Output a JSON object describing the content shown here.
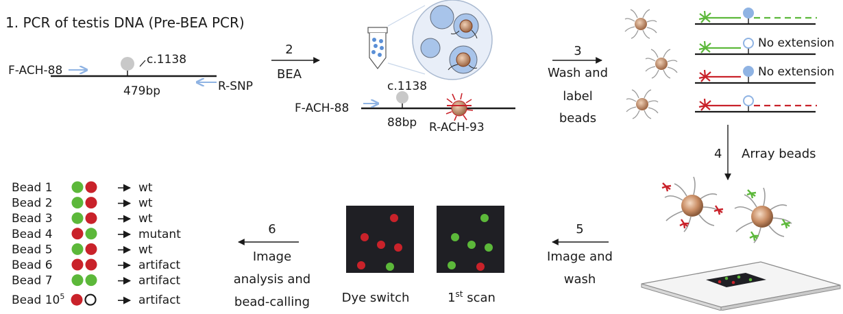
{
  "step1": {
    "title": "1. PCR of testis DNA (Pre-BEA PCR)",
    "forward_primer": "F-ACH-88",
    "snp_label": "c.1138",
    "reverse_primer": "R-SNP",
    "size": "479bp"
  },
  "step2": {
    "number": "2",
    "label": "BEA",
    "snp_label": "c.1138",
    "forward_primer": "F-ACH-88",
    "size": "88bp",
    "reverse_primer": "R-ACH-93"
  },
  "step3": {
    "number": "3",
    "line1": "Wash and",
    "line2": "label",
    "line3": "beads",
    "no_extension_1": "No extension",
    "no_extension_2": "No extension"
  },
  "step4": {
    "number": "4",
    "label": "Array beads"
  },
  "step5": {
    "number": "5",
    "line1": "Image and",
    "line2": "wash"
  },
  "scans": {
    "dye_switch": "Dye switch",
    "first_scan_main": "1",
    "first_scan_sup": "st",
    "first_scan_rest": " scan"
  },
  "step6": {
    "number": "6",
    "line1": "Image",
    "line2": "analysis and",
    "line3": "bead-calling"
  },
  "bead_calls": [
    {
      "label": "Bead 1",
      "dots": [
        "green",
        "red"
      ],
      "call": "wt"
    },
    {
      "label": "Bead 2",
      "dots": [
        "green",
        "red"
      ],
      "call": "wt"
    },
    {
      "label": "Bead 3",
      "dots": [
        "green",
        "red"
      ],
      "call": "wt"
    },
    {
      "label": "Bead 4",
      "dots": [
        "red",
        "green"
      ],
      "call": "mutant"
    },
    {
      "label": "Bead 5",
      "dots": [
        "green",
        "red"
      ],
      "call": "wt"
    },
    {
      "label": "Bead 6",
      "dots": [
        "red",
        "red"
      ],
      "call": "artifact"
    },
    {
      "label": "Bead 7",
      "dots": [
        "green",
        "green"
      ],
      "call": "artifact"
    },
    {
      "label": "Bead 10",
      "label_sup": "5",
      "dots": [
        "red",
        "empty"
      ],
      "call": "artifact"
    }
  ],
  "colors": {
    "green": "#5cb83a",
    "red": "#c9222a",
    "blue": "#8fb3e3",
    "dark_panel": "#1f1f24",
    "bead": "#d9a47a",
    "well_blue": "#a8c4ea"
  },
  "icons": [
    "arrow-right-icon",
    "arrow-down-icon",
    "bead-icon",
    "tube-icon",
    "emulsion-icon",
    "slide-icon"
  ]
}
